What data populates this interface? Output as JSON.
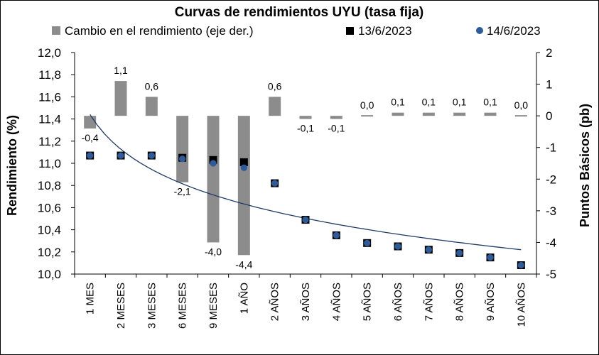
{
  "chart_data": {
    "type": "bar+scatter",
    "title": "Curvas de rendimientos UYU (tasa fija)",
    "ylabel": "Rendimiento (%)",
    "y2label": "Puntos Básicos (pb)",
    "ylim": [
      10.0,
      12.0
    ],
    "y2lim": [
      -5,
      2
    ],
    "yticks": [
      "12,0",
      "11,8",
      "11,6",
      "11,4",
      "11,2",
      "11,0",
      "10,8",
      "10,6",
      "10,4",
      "10,2",
      "10,0"
    ],
    "y2ticks": [
      "2",
      "1",
      "0",
      "-1",
      "-2",
      "-3",
      "-4",
      "-5"
    ],
    "categories": [
      "1 MES",
      "2 MESES",
      "3 MESES",
      "6 MESES",
      "9 MESES",
      "1 AÑO",
      "2 AÑOS",
      "3 AÑOS",
      "4 AÑOS",
      "5 AÑOS",
      "6 AÑOS",
      "7 AÑOS",
      "8 AÑOS",
      "9 AÑOS",
      "10 AÑOS"
    ],
    "legend": {
      "bars": "Cambio en el rendimiento (eje der.)",
      "series1": "13/6/2023",
      "series2": "14/6/2023",
      "position": "top"
    },
    "bar_series": {
      "name": "Cambio en el rendimiento (eje der.)",
      "axis": "right",
      "color": "#8c8c8c",
      "values": [
        -0.4,
        1.1,
        0.6,
        -2.1,
        -4.0,
        -4.4,
        0.6,
        -0.1,
        -0.1,
        0.0,
        0.1,
        0.1,
        0.1,
        0.1,
        0.0
      ],
      "labels": [
        "-0,4",
        "1,1",
        "0,6",
        "-2,1",
        "-4,0",
        "-4,4",
        "0,6",
        "-0,1",
        "-0,1",
        "0,0",
        "0,1",
        "0,1",
        "0,1",
        "0,1",
        "0,0"
      ]
    },
    "series": [
      {
        "name": "13/6/2023",
        "marker": "square",
        "color": "#000000",
        "axis": "left",
        "values": [
          11.07,
          11.07,
          11.07,
          11.05,
          11.03,
          11.01,
          10.82,
          10.49,
          10.35,
          10.28,
          10.25,
          10.22,
          10.19,
          10.15,
          10.08
        ]
      },
      {
        "name": "14/6/2023",
        "marker": "circle",
        "color": "#2e5c9a",
        "axis": "left",
        "values": [
          11.07,
          11.07,
          11.07,
          11.04,
          11.0,
          10.96,
          10.82,
          10.49,
          10.35,
          10.28,
          10.25,
          10.22,
          10.19,
          10.15,
          10.08
        ]
      }
    ],
    "trendline": {
      "type": "logarithmic",
      "color": "#1f3a68",
      "from": 11.44,
      "to": 10.22
    },
    "grid": false
  }
}
